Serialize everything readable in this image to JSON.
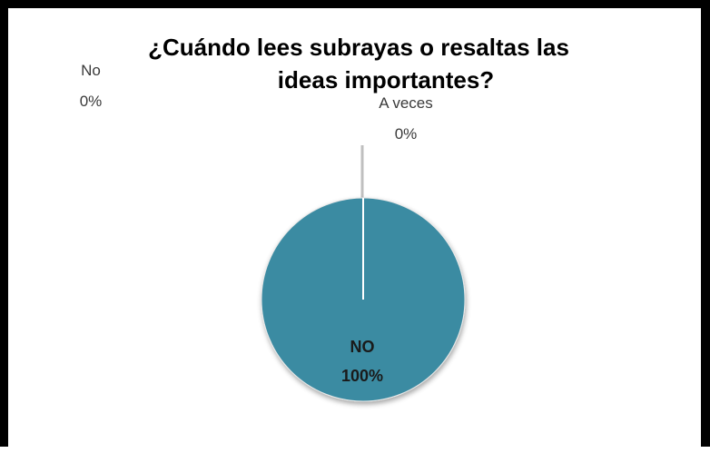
{
  "chart_data": {
    "type": "pie",
    "title": "¿Cuándo lees subrayas o resaltas las ideas importantes?",
    "title_lines": [
      "¿Cuándo lees subrayas o resaltas las",
      "ideas importantes?"
    ],
    "categories": [
      "NO",
      "No",
      "A veces"
    ],
    "values": [
      100,
      0,
      0
    ],
    "labels": [
      {
        "category": "NO",
        "percent": "100%"
      },
      {
        "category": "No",
        "percent": "0%"
      },
      {
        "category": "A veces",
        "percent": "0%"
      }
    ],
    "colors": {
      "slice": "#3a8ba2",
      "slice_edge": "#ffffff",
      "leader_line": "#bfbfbf"
    },
    "legend": "none"
  }
}
